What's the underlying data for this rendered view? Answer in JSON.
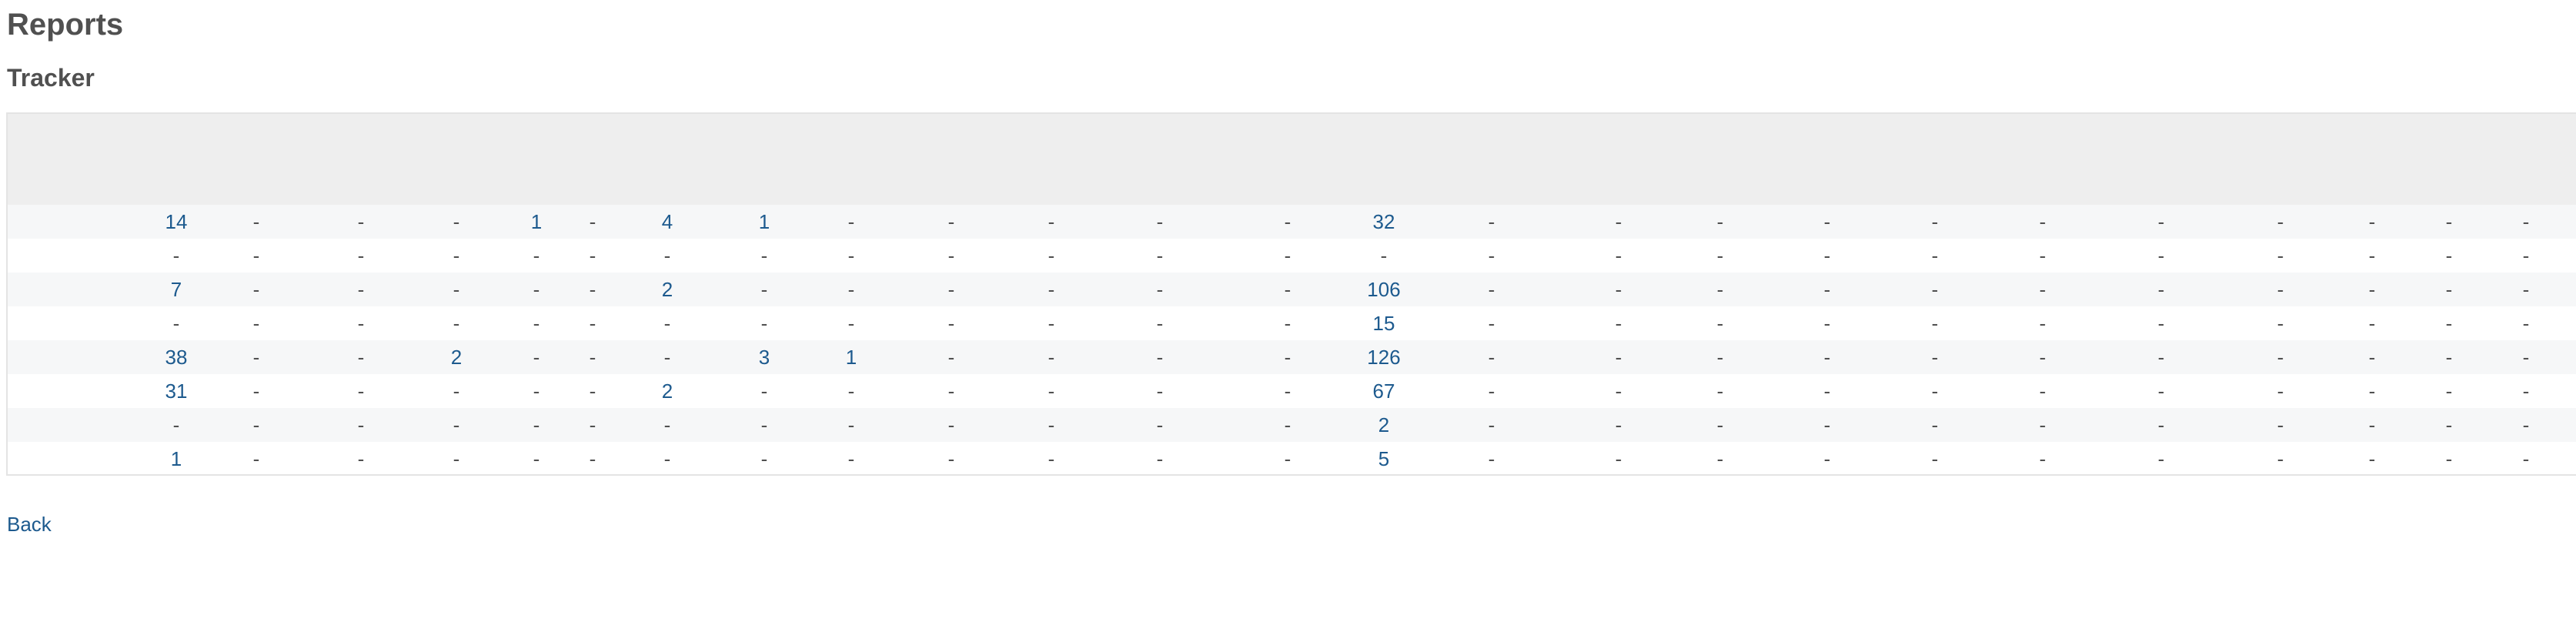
{
  "page": {
    "title": "Reports",
    "subtitle": "Tracker",
    "back_label": "Back"
  },
  "colors": {
    "link": "#1d5a8e",
    "text": "#505050",
    "header_bg": "#eeeeee",
    "row_alt_bg": "#f6f7f8",
    "border": "#e4e4e4"
  },
  "table": {
    "rows": [
      [
        "14",
        "-",
        "-",
        "-",
        "1",
        "-",
        "4",
        "1",
        "-",
        "-",
        "-",
        "-",
        "-",
        "32",
        "-",
        "-",
        "-",
        "-",
        "-",
        "-",
        "-",
        "-",
        "-",
        "-",
        "-"
      ],
      [
        "-",
        "-",
        "-",
        "-",
        "-",
        "-",
        "-",
        "-",
        "-",
        "-",
        "-",
        "-",
        "-",
        "-",
        "-",
        "-",
        "-",
        "-",
        "-",
        "-",
        "-",
        "-",
        "-",
        "-",
        "-"
      ],
      [
        "7",
        "-",
        "-",
        "-",
        "-",
        "-",
        "2",
        "-",
        "-",
        "-",
        "-",
        "-",
        "-",
        "106",
        "-",
        "-",
        "-",
        "-",
        "-",
        "-",
        "-",
        "-",
        "-",
        "-",
        "-"
      ],
      [
        "-",
        "-",
        "-",
        "-",
        "-",
        "-",
        "-",
        "-",
        "-",
        "-",
        "-",
        "-",
        "-",
        "15",
        "-",
        "-",
        "-",
        "-",
        "-",
        "-",
        "-",
        "-",
        "-",
        "-",
        "-"
      ],
      [
        "38",
        "-",
        "-",
        "2",
        "-",
        "-",
        "-",
        "3",
        "1",
        "-",
        "-",
        "-",
        "-",
        "126",
        "-",
        "-",
        "-",
        "-",
        "-",
        "-",
        "-",
        "-",
        "-",
        "-",
        "-"
      ],
      [
        "31",
        "-",
        "-",
        "-",
        "-",
        "-",
        "2",
        "-",
        "-",
        "-",
        "-",
        "-",
        "-",
        "67",
        "-",
        "-",
        "-",
        "-",
        "-",
        "-",
        "-",
        "-",
        "-",
        "-",
        "-"
      ],
      [
        "-",
        "-",
        "-",
        "-",
        "-",
        "-",
        "-",
        "-",
        "-",
        "-",
        "-",
        "-",
        "-",
        "2",
        "-",
        "-",
        "-",
        "-",
        "-",
        "-",
        "-",
        "-",
        "-",
        "-",
        "-"
      ],
      [
        "1",
        "-",
        "-",
        "-",
        "-",
        "-",
        "-",
        "-",
        "-",
        "-",
        "-",
        "-",
        "-",
        "5",
        "-",
        "-",
        "-",
        "-",
        "-",
        "-",
        "-",
        "-",
        "-",
        "-",
        "-"
      ]
    ]
  }
}
